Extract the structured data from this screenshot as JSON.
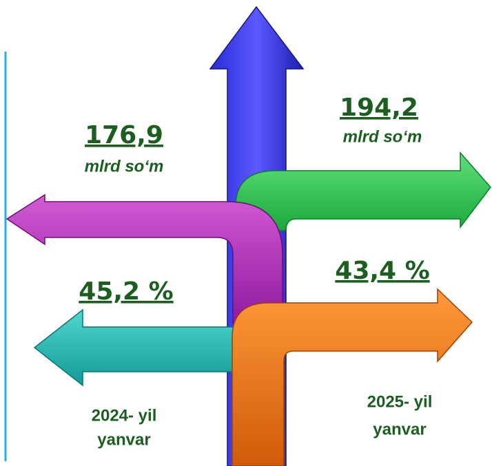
{
  "left": {
    "amount": "176,9",
    "unit": "mlrd so‘m",
    "percent": "45,2 %",
    "period": [
      "2024- yil",
      "yanvar"
    ]
  },
  "right": {
    "amount": "194,2",
    "unit": "mlrd so‘m",
    "percent": "43,4 %",
    "period": [
      "2025- yil",
      "yanvar"
    ]
  }
}
